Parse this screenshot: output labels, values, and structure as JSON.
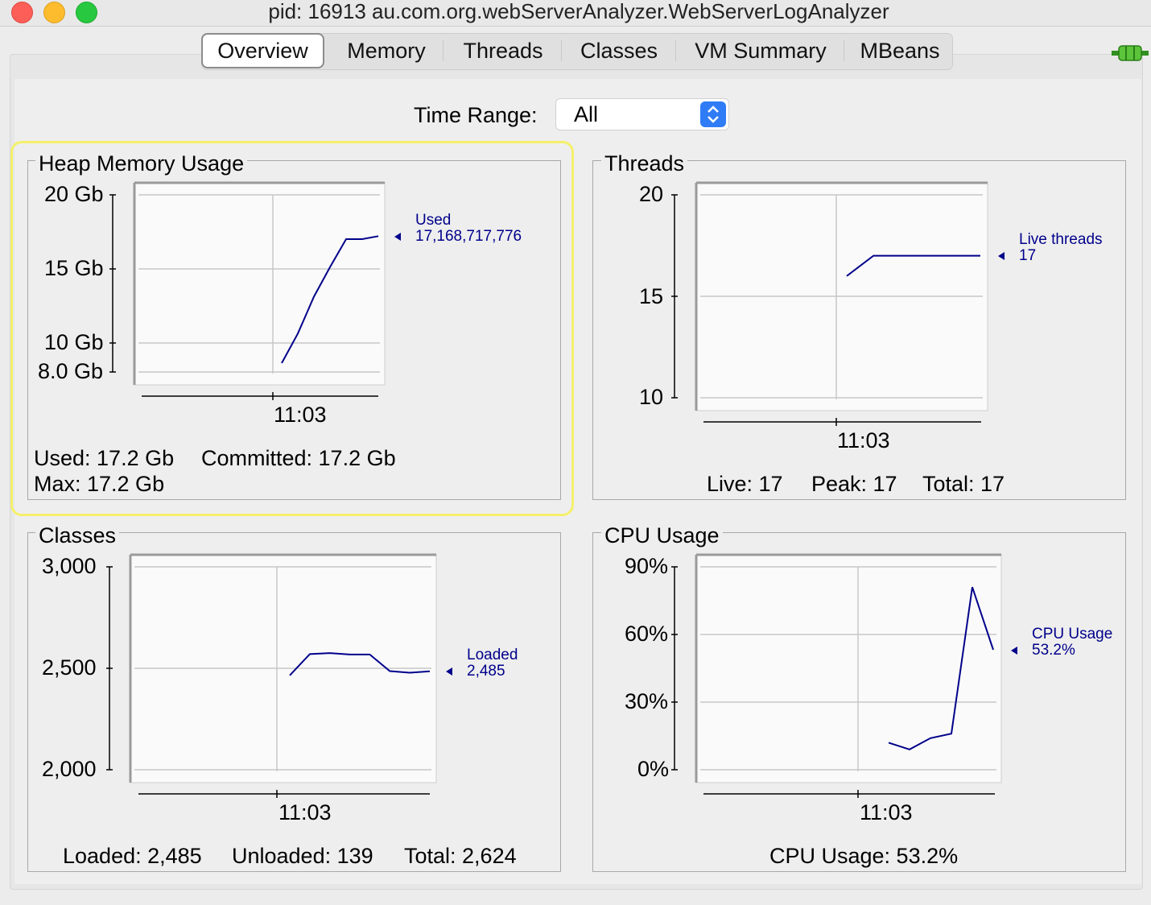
{
  "window": {
    "title": "pid: 16913 au.com.org.webServerAnalyzer.WebServerLogAnalyzer"
  },
  "tabs": [
    {
      "label": "Overview",
      "active": true
    },
    {
      "label": "Memory"
    },
    {
      "label": "Threads"
    },
    {
      "label": "Classes"
    },
    {
      "label": "VM Summary"
    },
    {
      "label": "MBeans"
    }
  ],
  "connection_icon": "plug-connected-icon",
  "time_range": {
    "label": "Time Range:",
    "value": "All"
  },
  "panels": {
    "heap": {
      "title": "Heap Memory Usage",
      "y_ticks": [
        "20 Gb",
        "15 Gb",
        "10 Gb",
        "8.0 Gb"
      ],
      "x_tick": "11:03",
      "legend_name": "Used",
      "legend_value": "17,168,717,776",
      "used": "Used: 17.2 Gb",
      "committed": "Committed: 17.2 Gb",
      "max": "Max: 17.2 Gb"
    },
    "threads": {
      "title": "Threads",
      "y_ticks": [
        "20",
        "15",
        "10"
      ],
      "x_tick": "11:03",
      "legend_name": "Live threads",
      "legend_value": "17",
      "live": "Live: 17",
      "peak": "Peak: 17",
      "total": "Total: 17"
    },
    "classes": {
      "title": "Classes",
      "y_ticks": [
        "3,000",
        "2,500",
        "2,000"
      ],
      "x_tick": "11:03",
      "legend_name": "Loaded",
      "legend_value": "2,485",
      "loaded": "Loaded: 2,485",
      "unloaded": "Unloaded: 139",
      "total": "Total: 2,624"
    },
    "cpu": {
      "title": "CPU Usage",
      "y_ticks": [
        "90%",
        "60%",
        "30%",
        "0%"
      ],
      "x_tick": "11:03",
      "legend_name": "CPU Usage",
      "legend_value": "53.2%",
      "usage": "CPU Usage: 53.2%"
    }
  },
  "chart_data": [
    {
      "type": "line",
      "title": "Heap Memory Usage",
      "ylim": [
        8,
        20
      ],
      "unit": "Gb",
      "series": [
        {
          "name": "Used",
          "values": [
            8.6,
            10.6,
            13.1,
            15.1,
            17.0,
            17.0,
            17.2
          ]
        }
      ]
    },
    {
      "type": "line",
      "title": "Threads",
      "ylim": [
        10,
        20
      ],
      "series": [
        {
          "name": "Live threads",
          "values": [
            16,
            17,
            17,
            17,
            17,
            17
          ]
        }
      ]
    },
    {
      "type": "line",
      "title": "Classes",
      "ylim": [
        2000,
        3000
      ],
      "series": [
        {
          "name": "Loaded",
          "values": [
            2465,
            2570,
            2575,
            2568,
            2568,
            2486,
            2478,
            2485
          ]
        }
      ]
    },
    {
      "type": "line",
      "title": "CPU Usage",
      "ylim": [
        0,
        90
      ],
      "unit": "%",
      "series": [
        {
          "name": "CPU Usage",
          "values": [
            12,
            9,
            14,
            16,
            81,
            53.2
          ]
        }
      ]
    }
  ]
}
